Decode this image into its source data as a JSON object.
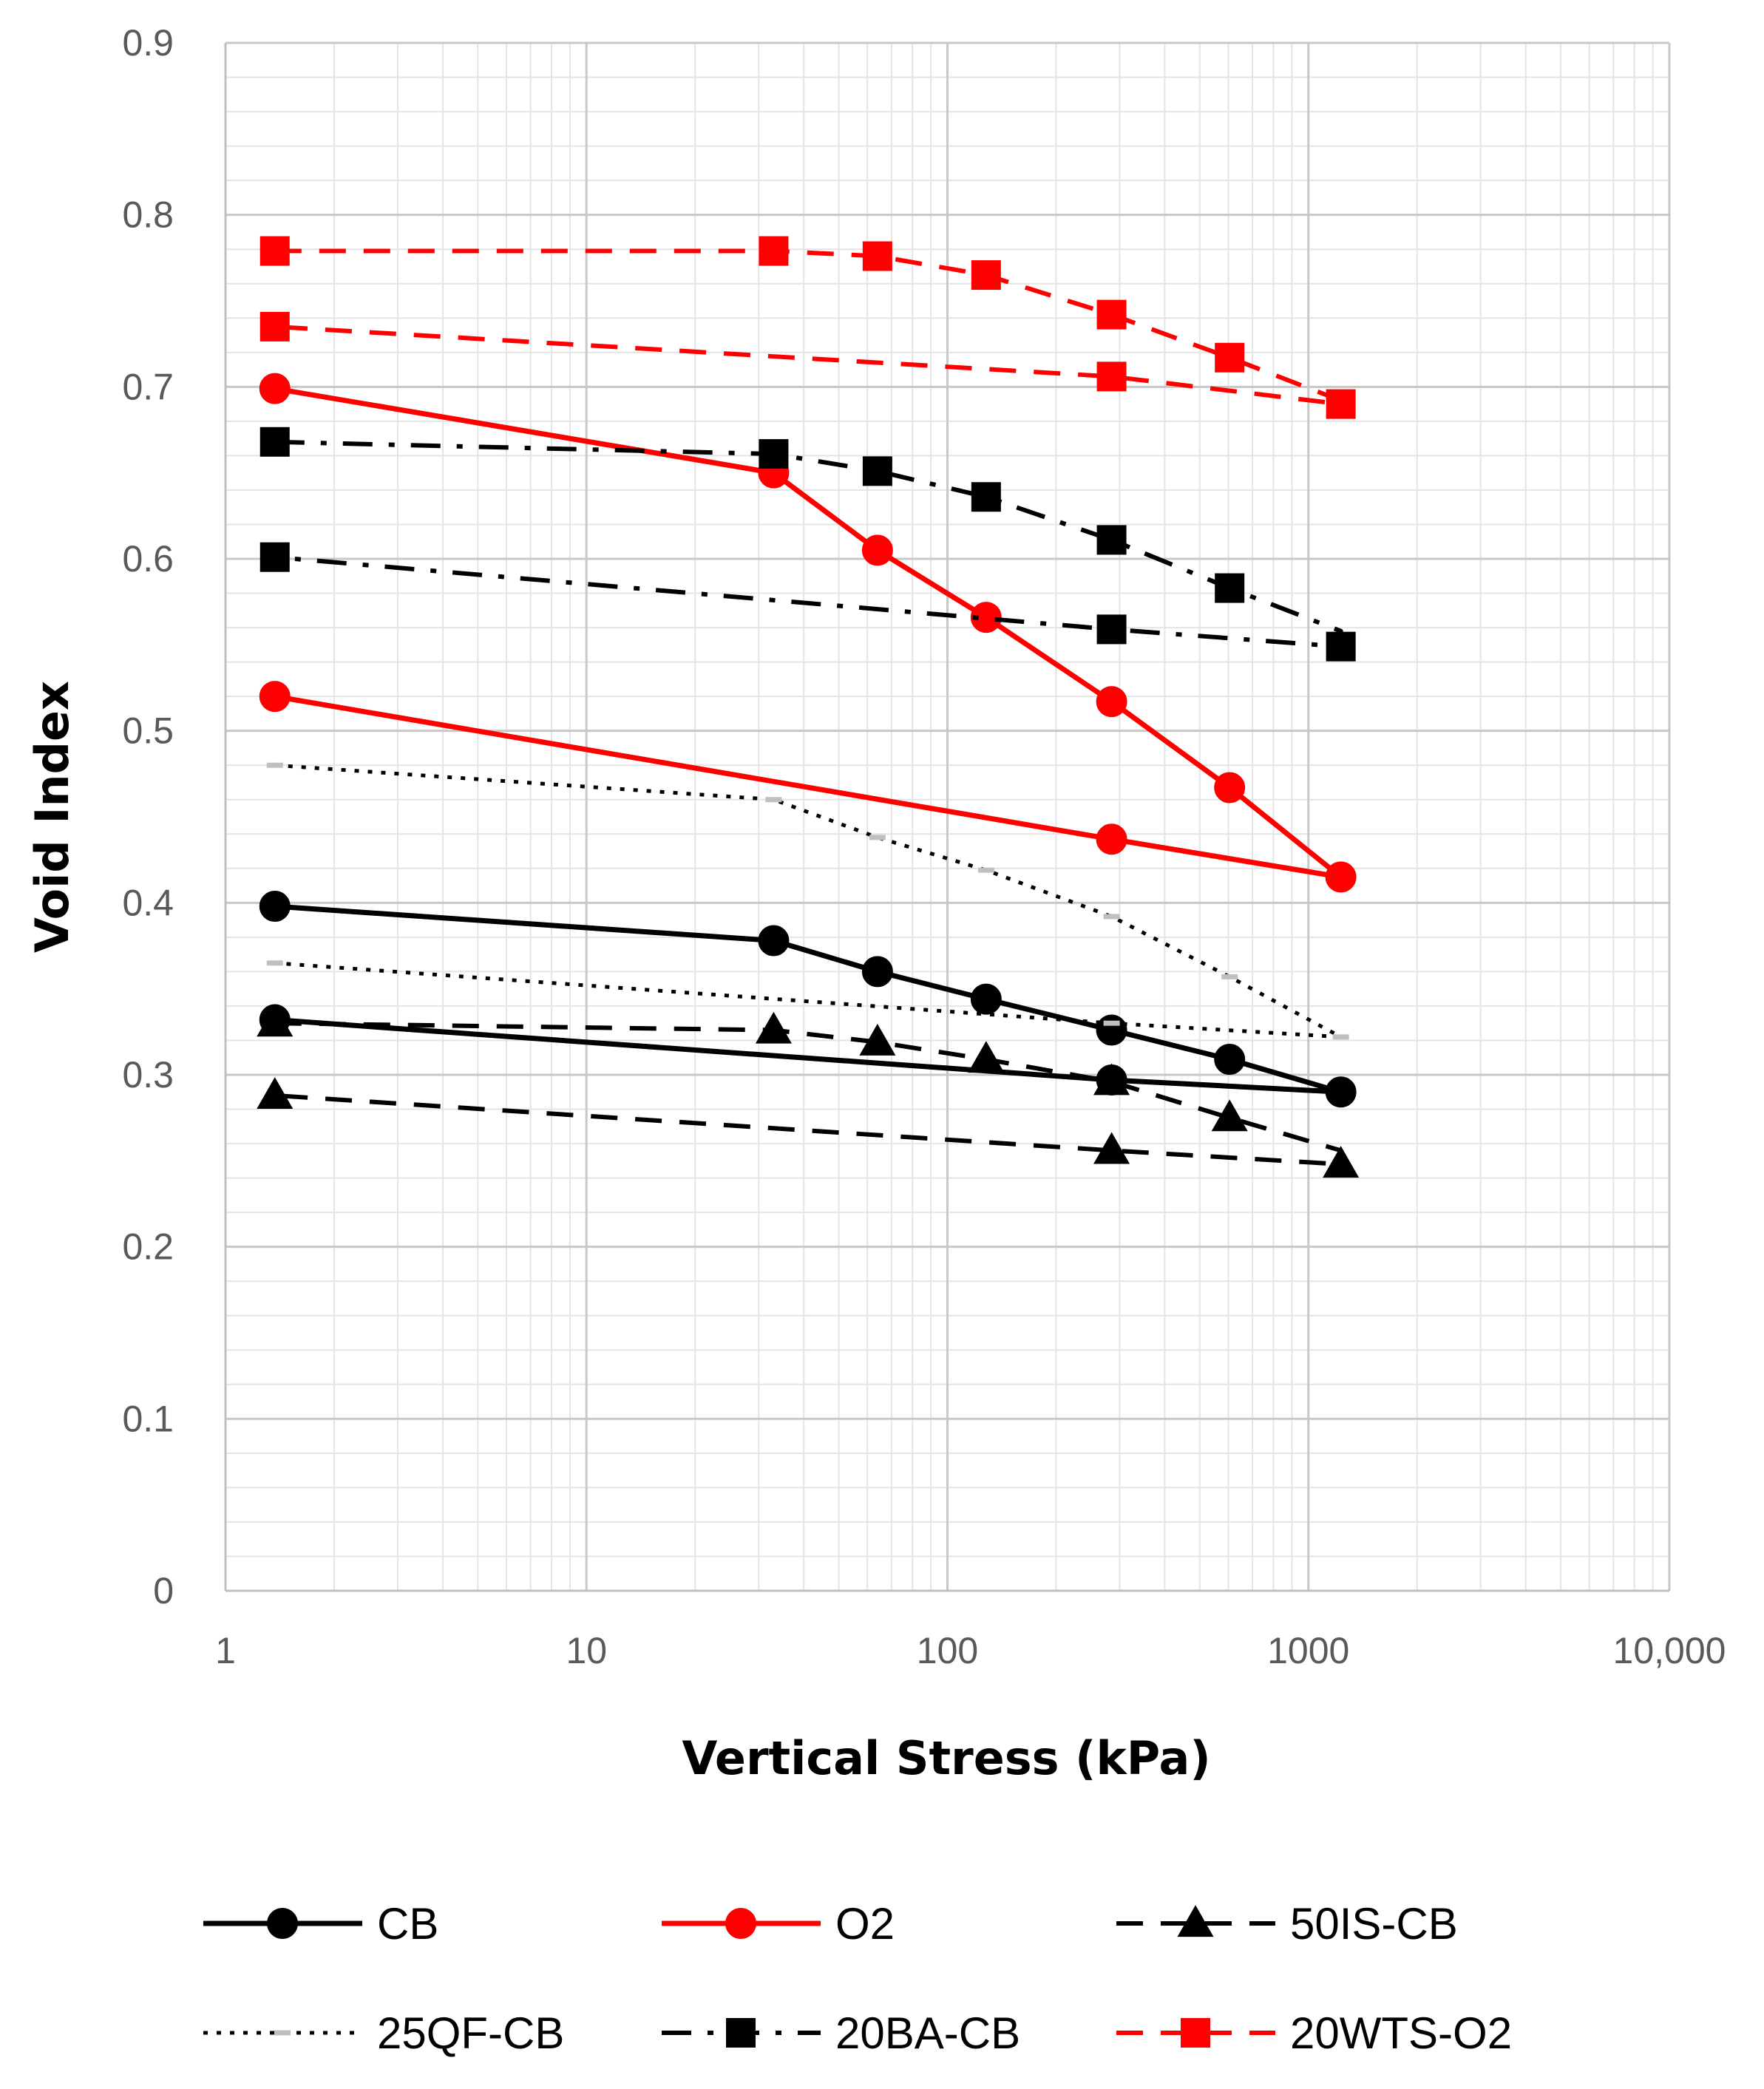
{
  "chart_data": {
    "type": "line",
    "title": "",
    "xlabel": "Vertical Stress (kPa)",
    "ylabel": "Void Index",
    "xscale": "log",
    "xlim": [
      1,
      10000
    ],
    "ylim": [
      0,
      0.9
    ],
    "xticks": [
      1,
      10,
      100,
      1000,
      10000
    ],
    "xtick_labels": [
      "1",
      "10",
      "100",
      "1000",
      "10,000"
    ],
    "yticks": [
      0,
      0.1,
      0.2,
      0.3,
      0.4,
      0.5,
      0.6,
      0.7,
      0.8,
      0.9
    ],
    "ytick_labels": [
      "0",
      "0.1",
      "0.2",
      "0.3",
      "0.4",
      "0.5",
      "0.6",
      "0.7",
      "0.8",
      "0.9"
    ],
    "grid": true,
    "legend_position": "bottom",
    "series": [
      {
        "name": "CB",
        "color": "#000000",
        "line_style": "solid",
        "marker": "circle",
        "points": [
          [
            1.37,
            0.398
          ],
          [
            33,
            0.378
          ],
          [
            64,
            0.36
          ],
          [
            128,
            0.344
          ],
          [
            285,
            0.326
          ],
          [
            605,
            0.309
          ],
          [
            1230,
            0.29
          ],
          [
            285,
            0.297
          ],
          [
            1.37,
            0.332
          ]
        ],
        "markers_at": [
          [
            1.37,
            0.398
          ],
          [
            33,
            0.378
          ],
          [
            64,
            0.36
          ],
          [
            128,
            0.344
          ],
          [
            285,
            0.326
          ],
          [
            605,
            0.309
          ],
          [
            1230,
            0.29
          ],
          [
            285,
            0.297
          ],
          [
            1.37,
            0.332
          ]
        ],
        "marker_fill": "#000000"
      },
      {
        "name": "O2",
        "color": "#ff0000",
        "line_style": "solid",
        "marker": "circle",
        "points": [
          [
            1.37,
            0.699
          ],
          [
            33,
            0.65
          ],
          [
            64,
            0.605
          ],
          [
            128,
            0.566
          ],
          [
            285,
            0.517
          ],
          [
            605,
            0.467
          ],
          [
            1230,
            0.415
          ],
          [
            285,
            0.437
          ],
          [
            1.37,
            0.52
          ]
        ],
        "markers_at": [
          [
            1.37,
            0.699
          ],
          [
            33,
            0.65
          ],
          [
            64,
            0.605
          ],
          [
            128,
            0.566
          ],
          [
            285,
            0.517
          ],
          [
            605,
            0.467
          ],
          [
            1230,
            0.415
          ],
          [
            285,
            0.437
          ],
          [
            1.37,
            0.52
          ]
        ],
        "marker_fill": "#ff0000"
      },
      {
        "name": "50IS-CB",
        "color": "#000000",
        "line_style": "dash",
        "marker": "triangle",
        "points": [
          [
            1.37,
            0.33
          ],
          [
            33,
            0.326
          ],
          [
            64,
            0.319
          ],
          [
            128,
            0.309
          ],
          [
            285,
            0.296
          ],
          [
            605,
            0.275
          ],
          [
            1230,
            0.256
          ],
          [
            1230,
            0.248
          ],
          [
            285,
            0.256
          ],
          [
            1.37,
            0.288
          ]
        ],
        "markers_at": [
          [
            1.37,
            0.33
          ],
          [
            33,
            0.326
          ],
          [
            64,
            0.319
          ],
          [
            128,
            0.309
          ],
          [
            285,
            0.296
          ],
          [
            605,
            0.275
          ],
          [
            1230,
            0.248
          ],
          [
            285,
            0.256
          ],
          [
            1.37,
            0.288
          ]
        ],
        "marker_fill": "#000000"
      },
      {
        "name": "25QF-CB",
        "color": "#000000",
        "line_style": "dot",
        "marker": "dash",
        "points": [
          [
            1.37,
            0.48
          ],
          [
            33,
            0.46
          ],
          [
            64,
            0.438
          ],
          [
            128,
            0.419
          ],
          [
            285,
            0.392
          ],
          [
            605,
            0.357
          ],
          [
            1230,
            0.322
          ],
          [
            285,
            0.33
          ],
          [
            1.37,
            0.365
          ]
        ],
        "markers_at": [
          [
            1.37,
            0.48
          ],
          [
            33,
            0.46
          ],
          [
            64,
            0.438
          ],
          [
            128,
            0.419
          ],
          [
            285,
            0.392
          ],
          [
            605,
            0.357
          ],
          [
            1230,
            0.322
          ],
          [
            285,
            0.33
          ],
          [
            1.37,
            0.365
          ]
        ],
        "marker_fill": "#bfbfbf"
      },
      {
        "name": "20BA-CB",
        "color": "#000000",
        "line_style": "dashdot",
        "marker": "square",
        "points": [
          [
            1.37,
            0.668
          ],
          [
            33,
            0.661
          ],
          [
            64,
            0.651
          ],
          [
            128,
            0.636
          ],
          [
            285,
            0.611
          ],
          [
            605,
            0.583
          ],
          [
            1230,
            0.558
          ],
          [
            1230,
            0.549
          ],
          [
            285,
            0.559
          ],
          [
            1.37,
            0.601
          ]
        ],
        "markers_at": [
          [
            1.37,
            0.668
          ],
          [
            33,
            0.661
          ],
          [
            64,
            0.651
          ],
          [
            128,
            0.636
          ],
          [
            285,
            0.611
          ],
          [
            605,
            0.583
          ],
          [
            1230,
            0.549
          ],
          [
            285,
            0.559
          ],
          [
            1.37,
            0.601
          ]
        ],
        "marker_fill": "#000000"
      },
      {
        "name": "20WTS-O2",
        "color": "#ff0000",
        "line_style": "dash",
        "marker": "square",
        "points": [
          [
            1.37,
            0.779
          ],
          [
            33,
            0.779
          ],
          [
            64,
            0.776
          ],
          [
            128,
            0.765
          ],
          [
            285,
            0.742
          ],
          [
            605,
            0.717
          ],
          [
            1230,
            0.692
          ],
          [
            1230,
            0.69
          ],
          [
            285,
            0.706
          ],
          [
            1.37,
            0.735
          ]
        ],
        "markers_at": [
          [
            1.37,
            0.779
          ],
          [
            33,
            0.779
          ],
          [
            64,
            0.776
          ],
          [
            128,
            0.765
          ],
          [
            285,
            0.742
          ],
          [
            605,
            0.717
          ],
          [
            1230,
            0.69
          ],
          [
            285,
            0.706
          ],
          [
            1.37,
            0.735
          ]
        ],
        "marker_fill": "#ff0000"
      }
    ]
  }
}
